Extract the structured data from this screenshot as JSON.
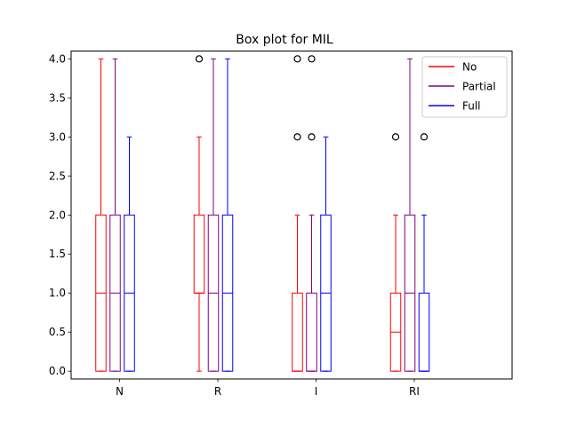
{
  "chart_data": {
    "type": "box",
    "title": "Box plot for MIL",
    "xlabel": "",
    "ylabel": "",
    "categories": [
      "N",
      "R",
      "I",
      "RI"
    ],
    "ylim": [
      -0.1,
      4.1
    ],
    "yticks": [
      0.0,
      0.5,
      1.0,
      1.5,
      2.0,
      2.5,
      3.0,
      3.5,
      4.0
    ],
    "ytick_labels": [
      "0.0",
      "0.5",
      "1.0",
      "1.5",
      "2.0",
      "2.5",
      "3.0",
      "3.5",
      "4.0"
    ],
    "legend_position": "top-right",
    "grid": false,
    "series": [
      {
        "name": "No",
        "color": "#ff0000",
        "boxes": [
          {
            "whislo": 0,
            "q1": 0,
            "med": 1,
            "q3": 2,
            "whishi": 4,
            "fliers": []
          },
          {
            "whislo": 0,
            "q1": 1,
            "med": 1,
            "q3": 2,
            "whishi": 3,
            "fliers": [
              4
            ]
          },
          {
            "whislo": 0,
            "q1": 0,
            "med": 0,
            "q3": 1,
            "whishi": 2,
            "fliers": [
              3,
              4
            ]
          },
          {
            "whislo": 0,
            "q1": 0,
            "med": 0.5,
            "q3": 1,
            "whishi": 2,
            "fliers": [
              3
            ]
          }
        ]
      },
      {
        "name": "Partial",
        "color": "#800080",
        "boxes": [
          {
            "whislo": 0,
            "q1": 0,
            "med": 1,
            "q3": 2,
            "whishi": 4,
            "fliers": []
          },
          {
            "whislo": 0,
            "q1": 0,
            "med": 1,
            "q3": 2,
            "whishi": 4,
            "fliers": []
          },
          {
            "whislo": 0,
            "q1": 0,
            "med": 0,
            "q3": 1,
            "whishi": 2,
            "fliers": [
              3,
              4
            ]
          },
          {
            "whislo": 0,
            "q1": 0,
            "med": 1,
            "q3": 2,
            "whishi": 4,
            "fliers": []
          }
        ]
      },
      {
        "name": "Full",
        "color": "#0000ff",
        "boxes": [
          {
            "whislo": 0,
            "q1": 0,
            "med": 1,
            "q3": 2,
            "whishi": 3,
            "fliers": []
          },
          {
            "whislo": 0,
            "q1": 0,
            "med": 1,
            "q3": 2,
            "whishi": 4,
            "fliers": []
          },
          {
            "whislo": 0,
            "q1": 0,
            "med": 1,
            "q3": 2,
            "whishi": 3,
            "fliers": []
          },
          {
            "whislo": 0,
            "q1": 0,
            "med": 0,
            "q3": 1,
            "whishi": 2,
            "fliers": [
              3
            ]
          }
        ]
      }
    ]
  }
}
